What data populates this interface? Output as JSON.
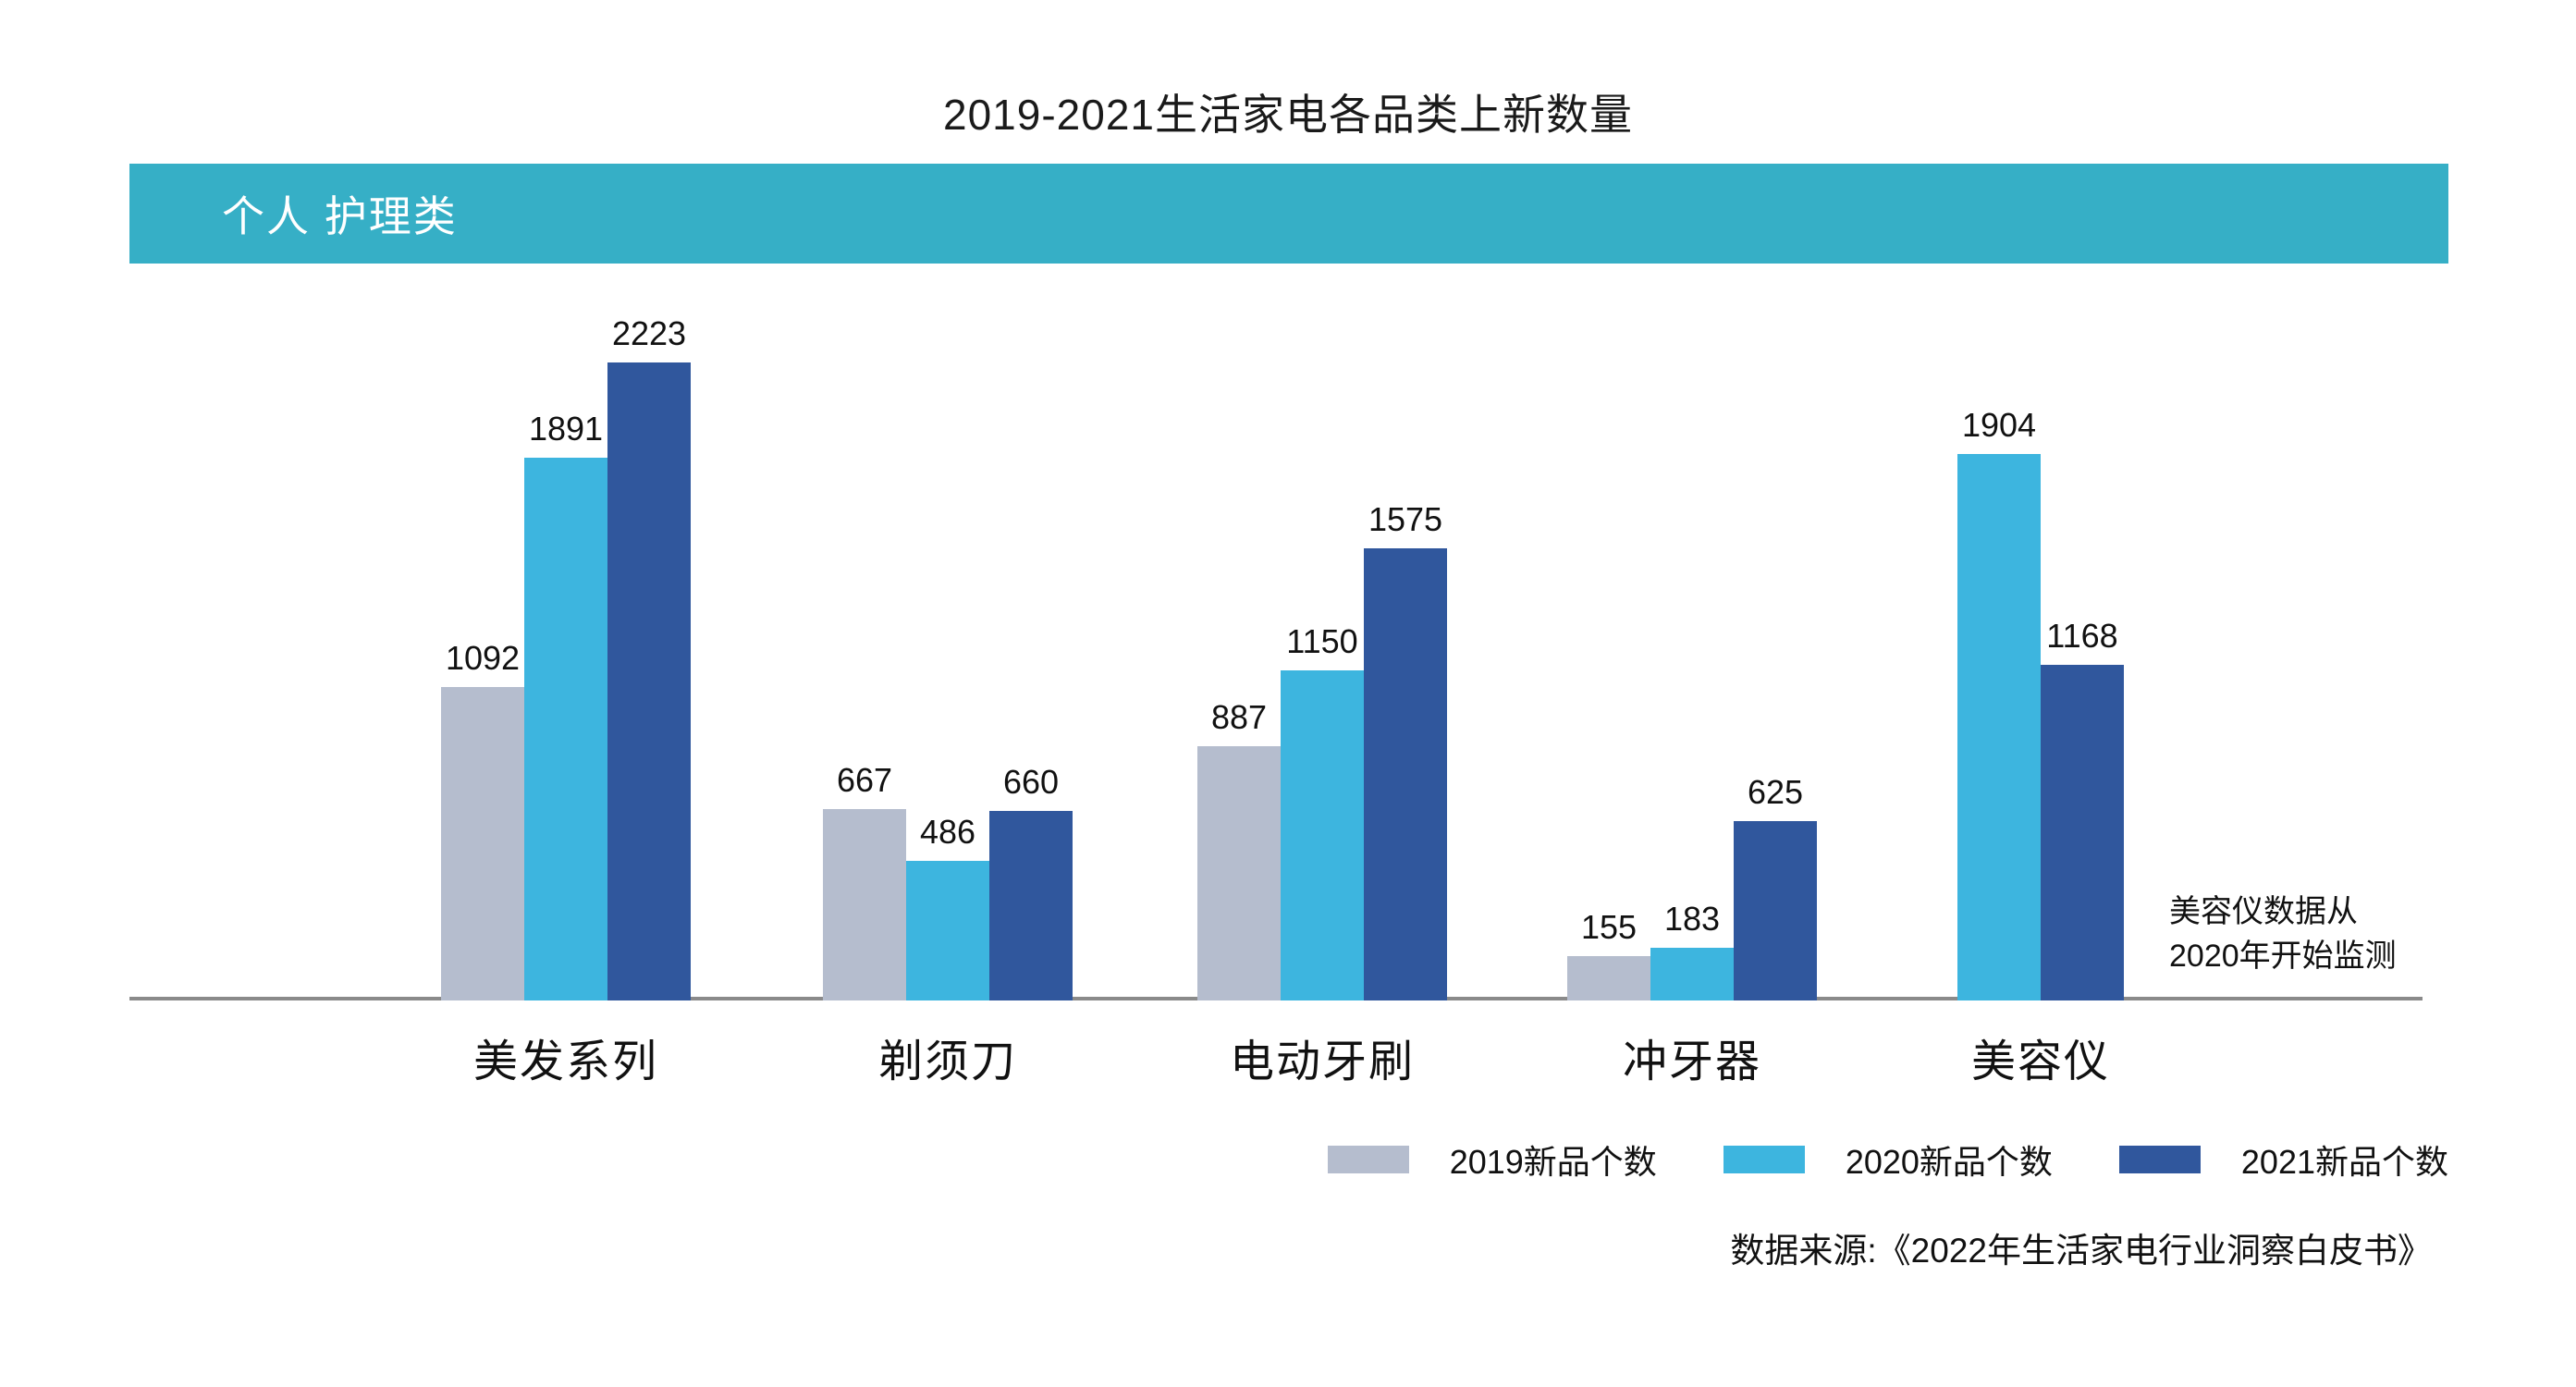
{
  "title": "2019-2021生活家电各品类上新数量",
  "section_header": "个人 护理类",
  "chart_data": {
    "type": "bar",
    "categories": [
      "美发系列",
      "剃须刀",
      "电动牙刷",
      "冲牙器",
      "美容仪"
    ],
    "series": [
      {
        "name": "2019新品个数",
        "color": "#b5bdce",
        "values": [
          1092,
          667,
          887,
          155,
          null
        ]
      },
      {
        "name": "2020新品个数",
        "color": "#3db5df",
        "values": [
          1891,
          486,
          1150,
          183,
          1904
        ]
      },
      {
        "name": "2021新品个数",
        "color": "#30579d",
        "values": [
          2223,
          660,
          1575,
          625,
          1168
        ]
      }
    ],
    "ylim": [
      0,
      2400
    ],
    "grid": false,
    "value_labels": true,
    "legend_position": "bottom-right",
    "xlabel": "",
    "ylabel": ""
  },
  "annotation": {
    "text": "美容仪数据从\n2020年开始监测"
  },
  "source": "数据来源:《2022年生活家电行业洞察白皮书》",
  "colors": {
    "header_bg": "#36afc6",
    "axis_line": "#8a8a8a"
  }
}
